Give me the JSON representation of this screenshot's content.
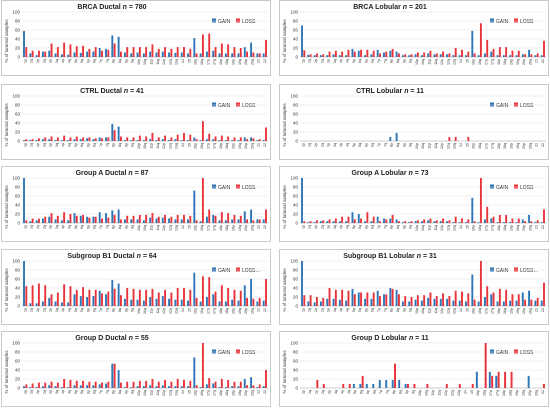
{
  "colors": {
    "gain": "#2e75b6",
    "loss": "#e8333b"
  },
  "categories_full": [
    "1p",
    "1q",
    "2p",
    "2q",
    "3p",
    "3q",
    "4p",
    "4q",
    "5p",
    "5q",
    "6p",
    "6q",
    "7p",
    "7q",
    "8p",
    "8q",
    "9p",
    "9q",
    "10p",
    "10q",
    "11p",
    "11q",
    "12p",
    "12q",
    "13q",
    "14",
    "15",
    "16p",
    "16q",
    "17p",
    "17q",
    "18p",
    "18q",
    "19p",
    "19q",
    "20p",
    "20q",
    "21",
    "22"
  ],
  "categories_short": [
    "1p",
    "1q",
    "2p",
    "2q",
    "3p",
    "3q",
    "4p",
    "4q",
    "5p",
    "5q",
    "6p",
    "6q",
    "7p",
    "7q",
    "8p",
    "8q",
    "9p",
    "9q",
    "10p",
    "10q",
    "11p",
    "11q",
    "12p",
    "12q",
    "13q",
    "14",
    "15",
    "16p",
    "16q",
    "17p",
    "17q",
    "18p",
    "18q",
    "19p",
    "19q",
    "20p",
    "20q",
    "22"
  ],
  "chart_data": [
    {
      "type": "bar",
      "title_prefix": "BRCA Ductal",
      "n_label": "n",
      "n_value": "780",
      "ylabel": "% of tumoral samples",
      "ylim": [
        0,
        100
      ],
      "yticks": [
        0,
        20,
        40,
        60,
        80,
        100
      ],
      "legend": "top-right",
      "cats": "full",
      "series": [
        {
          "name": "GAIN",
          "values": [
            58,
            8,
            4,
            12,
            14,
            8,
            6,
            5,
            10,
            9,
            12,
            12,
            20,
            18,
            48,
            45,
            10,
            8,
            10,
            8,
            12,
            10,
            12,
            10,
            9,
            10,
            8,
            42,
            8,
            12,
            14,
            8,
            8,
            8,
            8,
            22,
            32,
            8,
            8
          ]
        },
        {
          "name": "LOSS",
          "values": [
            22,
            14,
            14,
            12,
            30,
            22,
            32,
            28,
            24,
            25,
            18,
            22,
            14,
            16,
            30,
            12,
            22,
            22,
            22,
            22,
            28,
            18,
            22,
            18,
            22,
            22,
            18,
            8,
            50,
            52,
            22,
            30,
            28,
            22,
            20,
            12,
            10,
            8,
            38
          ]
        }
      ]
    },
    {
      "type": "bar",
      "title_prefix": "BRCA Lobular",
      "n_label": "n",
      "n_value": "201",
      "ylabel": "% of tumoral samples",
      "ylim": [
        0,
        100
      ],
      "yticks": [
        0,
        20,
        40,
        60,
        80,
        100
      ],
      "legend": "top-right",
      "cats": "full",
      "series": [
        {
          "name": "GAIN",
          "values": [
            70,
            5,
            4,
            4,
            4,
            6,
            4,
            4,
            18,
            14,
            4,
            6,
            16,
            10,
            14,
            12,
            4,
            4,
            6,
            4,
            8,
            6,
            6,
            6,
            4,
            4,
            4,
            58,
            4,
            8,
            12,
            4,
            4,
            4,
            4,
            6,
            16,
            4,
            4
          ]
        },
        {
          "name": "LOSS",
          "values": [
            15,
            6,
            8,
            6,
            12,
            14,
            12,
            16,
            12,
            16,
            16,
            14,
            8,
            12,
            18,
            8,
            6,
            6,
            10,
            10,
            14,
            8,
            12,
            8,
            20,
            16,
            12,
            8,
            75,
            38,
            18,
            22,
            22,
            14,
            14,
            6,
            6,
            8,
            36
          ]
        }
      ]
    },
    {
      "type": "bar",
      "title_prefix": "CTRL Ductal",
      "n_label": "n",
      "n_value": "41",
      "ylabel": "% of tumoral samples",
      "ylim": [
        0,
        100
      ],
      "yticks": [
        0,
        20,
        40,
        60,
        80,
        100
      ],
      "legend": "top-right",
      "cats": "full",
      "series": [
        {
          "name": "GAIN",
          "values": [
            2,
            2,
            2,
            4,
            4,
            2,
            2,
            2,
            4,
            4,
            6,
            4,
            8,
            8,
            38,
            32,
            2,
            2,
            2,
            2,
            4,
            2,
            4,
            2,
            4,
            2,
            2,
            8,
            2,
            4,
            4,
            2,
            2,
            2,
            2,
            8,
            8,
            2,
            2
          ]
        },
        {
          "name": "LOSS",
          "values": [
            4,
            4,
            6,
            8,
            10,
            8,
            12,
            8,
            10,
            8,
            8,
            6,
            6,
            8,
            24,
            10,
            8,
            8,
            12,
            10,
            18,
            8,
            12,
            8,
            14,
            18,
            14,
            4,
            44,
            16,
            10,
            12,
            10,
            8,
            8,
            4,
            6,
            4,
            30
          ]
        }
      ]
    },
    {
      "type": "bar",
      "title_prefix": "CTRL Lobular",
      "n_label": "n",
      "n_value": "11",
      "ylabel": "% of tumoral samples",
      "ylim": [
        0,
        100
      ],
      "yticks": [
        0,
        20,
        40,
        60,
        80,
        100
      ],
      "legend": "top-right",
      "cats": "full",
      "series": [
        {
          "name": "GAIN",
          "values": [
            0,
            0,
            0,
            0,
            0,
            0,
            0,
            0,
            0,
            0,
            0,
            0,
            0,
            0,
            9,
            18,
            0,
            0,
            0,
            0,
            0,
            0,
            0,
            0,
            0,
            0,
            0,
            0,
            0,
            0,
            0,
            0,
            0,
            0,
            0,
            0,
            0,
            0,
            0
          ]
        },
        {
          "name": "LOSS",
          "values": [
            0,
            0,
            0,
            0,
            0,
            0,
            0,
            0,
            0,
            0,
            0,
            0,
            0,
            0,
            0,
            0,
            0,
            0,
            0,
            0,
            0,
            0,
            0,
            9,
            9,
            0,
            9,
            0,
            0,
            0,
            0,
            0,
            0,
            0,
            0,
            0,
            0,
            0,
            0
          ]
        }
      ]
    },
    {
      "type": "bar",
      "title_prefix": "Group A Ductal",
      "n_label": "n",
      "n_value": "87",
      "ylabel": "% of tumoral samples",
      "ylim": [
        0,
        100
      ],
      "yticks": [
        0,
        20,
        40,
        60,
        80,
        100
      ],
      "legend": "top-right",
      "cats": "full",
      "series": [
        {
          "name": "GAIN",
          "values": [
            100,
            4,
            6,
            10,
            14,
            8,
            6,
            6,
            22,
            16,
            14,
            14,
            24,
            22,
            28,
            30,
            8,
            8,
            8,
            6,
            12,
            10,
            12,
            10,
            8,
            8,
            8,
            72,
            4,
            14,
            18,
            6,
            6,
            8,
            8,
            26,
            30,
            8,
            8
          ]
        },
        {
          "name": "LOSS",
          "values": [
            6,
            10,
            10,
            14,
            22,
            16,
            24,
            20,
            16,
            18,
            12,
            14,
            10,
            12,
            18,
            8,
            16,
            16,
            18,
            18,
            22,
            14,
            18,
            14,
            18,
            18,
            16,
            6,
            100,
            30,
            16,
            24,
            22,
            18,
            16,
            8,
            6,
            8,
            30
          ]
        }
      ]
    },
    {
      "type": "bar",
      "title_prefix": "Group A Lobular",
      "n_label": "n",
      "n_value": "73",
      "ylabel": "% of tumoral samples",
      "ylim": [
        0,
        100
      ],
      "yticks": [
        0,
        20,
        40,
        60,
        80,
        100
      ],
      "legend": "top-right",
      "cats": "full",
      "series": [
        {
          "name": "GAIN",
          "values": [
            100,
            2,
            2,
            4,
            4,
            4,
            4,
            4,
            24,
            20,
            4,
            4,
            14,
            10,
            10,
            8,
            2,
            2,
            4,
            4,
            6,
            4,
            4,
            4,
            2,
            2,
            2,
            56,
            2,
            8,
            10,
            2,
            2,
            2,
            2,
            8,
            18,
            2,
            2
          ]
        },
        {
          "name": "LOSS",
          "values": [
            4,
            4,
            6,
            6,
            8,
            10,
            14,
            14,
            8,
            10,
            24,
            14,
            4,
            8,
            18,
            4,
            4,
            4,
            6,
            8,
            10,
            6,
            10,
            6,
            14,
            10,
            8,
            4,
            100,
            36,
            14,
            18,
            18,
            10,
            10,
            4,
            4,
            6,
            30
          ]
        }
      ]
    },
    {
      "type": "bar",
      "title_prefix": "Subgroup B1 Ductal",
      "n_label": "n",
      "n_value": "64",
      "ylabel": "% of tumoral samples",
      "ylim": [
        0,
        100
      ],
      "yticks": [
        0,
        20,
        40,
        60,
        80,
        100
      ],
      "legend": "top-right",
      "cats": "full",
      "legend_suffix": "…",
      "series": [
        {
          "name": "GAIN",
          "values": [
            100,
            6,
            6,
            10,
            18,
            10,
            8,
            8,
            26,
            22,
            20,
            22,
            34,
            26,
            58,
            50,
            16,
            14,
            14,
            12,
            20,
            16,
            22,
            16,
            14,
            14,
            12,
            74,
            10,
            20,
            26,
            10,
            10,
            14,
            12,
            46,
            60,
            10,
            12
          ]
        },
        {
          "name": "LOSS",
          "values": [
            44,
            46,
            50,
            46,
            26,
            30,
            48,
            44,
            36,
            42,
            36,
            36,
            28,
            32,
            38,
            24,
            40,
            38,
            36,
            36,
            38,
            30,
            36,
            30,
            40,
            40,
            36,
            18,
            66,
            64,
            32,
            46,
            40,
            36,
            34,
            18,
            16,
            18,
            60
          ]
        }
      ]
    },
    {
      "type": "bar",
      "title_prefix": "Subgroup B1 Lobular",
      "n_label": "n",
      "n_value": "31",
      "ylabel": "% of tumoral samples",
      "ylim": [
        0,
        100
      ],
      "yticks": [
        0,
        20,
        40,
        60,
        80,
        100
      ],
      "legend": "top-right",
      "cats": "full",
      "legend_suffix": "…",
      "series": [
        {
          "name": "GAIN",
          "values": [
            100,
            10,
            8,
            10,
            16,
            16,
            14,
            12,
            38,
            30,
            16,
            16,
            34,
            26,
            40,
            36,
            10,
            10,
            14,
            12,
            18,
            16,
            16,
            16,
            12,
            12,
            10,
            70,
            10,
            20,
            26,
            10,
            10,
            12,
            12,
            30,
            34,
            12,
            12
          ]
        },
        {
          "name": "LOSS",
          "values": [
            24,
            24,
            20,
            18,
            40,
            36,
            36,
            34,
            26,
            30,
            30,
            30,
            22,
            26,
            38,
            26,
            22,
            20,
            24,
            24,
            30,
            22,
            28,
            22,
            34,
            32,
            28,
            14,
            100,
            44,
            30,
            38,
            36,
            26,
            26,
            14,
            14,
            18,
            52
          ]
        }
      ]
    },
    {
      "type": "bar",
      "title_prefix": "Group D Ductal",
      "n_label": "n",
      "n_value": "55",
      "ylabel": "% of tumoral samples",
      "ylim": [
        0,
        100
      ],
      "yticks": [
        0,
        20,
        40,
        60,
        80,
        100
      ],
      "legend": "top-right",
      "cats": "full",
      "series": [
        {
          "name": "GAIN",
          "values": [
            4,
            2,
            2,
            4,
            6,
            4,
            2,
            2,
            6,
            6,
            6,
            6,
            8,
            10,
            54,
            40,
            2,
            2,
            4,
            4,
            6,
            4,
            6,
            4,
            4,
            4,
            4,
            68,
            2,
            8,
            10,
            2,
            2,
            4,
            4,
            20,
            24,
            2,
            4
          ]
        },
        {
          "name": "LOSS",
          "values": [
            8,
            10,
            12,
            12,
            14,
            12,
            20,
            18,
            16,
            16,
            14,
            14,
            12,
            14,
            54,
            12,
            14,
            14,
            16,
            16,
            20,
            14,
            18,
            14,
            20,
            18,
            16,
            6,
            100,
            22,
            14,
            20,
            18,
            14,
            14,
            6,
            6,
            8,
            40
          ]
        }
      ]
    },
    {
      "type": "bar",
      "title_prefix": "Group D Lobular",
      "n_label": "n",
      "n_value": "11",
      "ylabel": "% of tumoral samples",
      "ylim": [
        0,
        100
      ],
      "yticks": [
        0,
        20,
        40,
        60,
        80,
        100
      ],
      "legend": "top-right",
      "cats": "short",
      "series": [
        {
          "name": "GAIN",
          "values": [
            0,
            0,
            0,
            0,
            0,
            0,
            0,
            0,
            9,
            9,
            9,
            9,
            18,
            18,
            18,
            18,
            9,
            0,
            0,
            0,
            0,
            0,
            0,
            0,
            0,
            0,
            0,
            36,
            0,
            36,
            27,
            0,
            0,
            0,
            0,
            27,
            0,
            0
          ]
        },
        {
          "name": "LOSS",
          "values": [
            0,
            0,
            18,
            9,
            0,
            0,
            9,
            9,
            0,
            27,
            0,
            0,
            0,
            0,
            54,
            0,
            9,
            9,
            0,
            9,
            0,
            0,
            9,
            0,
            9,
            0,
            9,
            0,
            100,
            27,
            36,
            36,
            36,
            0,
            0,
            0,
            0,
            9
          ]
        }
      ]
    }
  ]
}
